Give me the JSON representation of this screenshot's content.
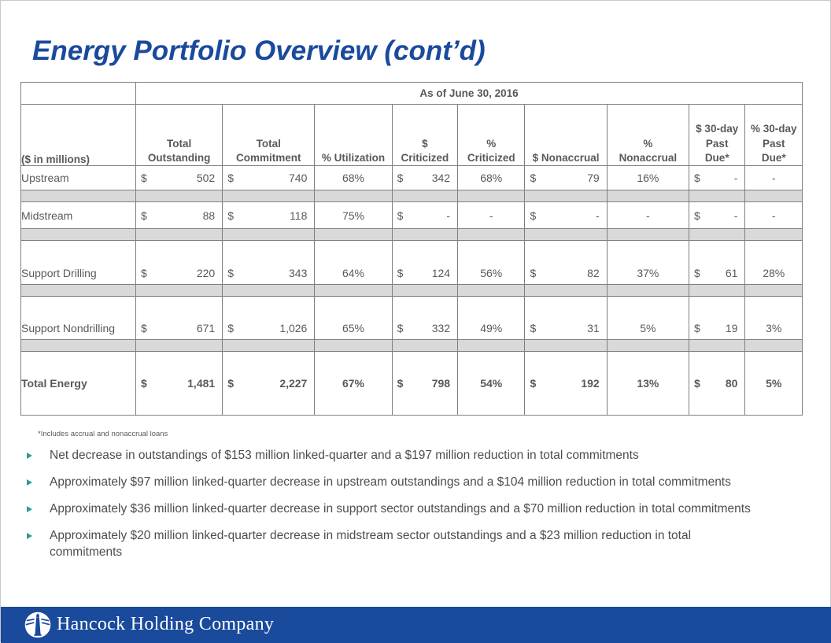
{
  "slide": {
    "title": "Energy Portfolio Overview (cont’d)"
  },
  "table": {
    "as_of_header": "As of June 30, 2016",
    "corner_label": "($ in millions)",
    "columns": [
      "Total\nOutstanding",
      "Total\nCommitment",
      "% Utilization",
      "$\nCriticized",
      "%\nCriticized",
      "$ Nonaccrual",
      "%\nNonaccrual",
      "$ 30-day\nPast\nDue*",
      "% 30-day\nPast\nDue*"
    ],
    "rows": [
      {
        "label": "Upstream",
        "bold": false,
        "valign": "middle",
        "cells": [
          [
            "$",
            "502"
          ],
          [
            "$",
            "740"
          ],
          "68%",
          [
            "$",
            "342"
          ],
          "68%",
          [
            "$",
            "79"
          ],
          "16%",
          [
            "$",
            "-"
          ],
          "-"
        ]
      },
      {
        "label": "Midstream",
        "bold": false,
        "valign": "middle",
        "cells": [
          [
            "$",
            "88"
          ],
          [
            "$",
            "118"
          ],
          "75%",
          [
            "$",
            "-"
          ],
          "-",
          [
            "$",
            "-"
          ],
          "-",
          [
            "$",
            "-"
          ],
          "-"
        ]
      },
      {
        "label": "Support Drilling",
        "bold": false,
        "valign": "bottom",
        "cells": [
          [
            "$",
            "220"
          ],
          [
            "$",
            "343"
          ],
          "64%",
          [
            "$",
            "124"
          ],
          "56%",
          [
            "$",
            "82"
          ],
          "37%",
          [
            "$",
            "61"
          ],
          "28%"
        ]
      },
      {
        "label": "Support Nondrilling",
        "bold": false,
        "valign": "bottom",
        "cells": [
          [
            "$",
            "671"
          ],
          [
            "$",
            "1,026"
          ],
          "65%",
          [
            "$",
            "332"
          ],
          "49%",
          [
            "$",
            "31"
          ],
          "5%",
          [
            "$",
            "19"
          ],
          "3%"
        ]
      },
      {
        "label": "Total Energy",
        "bold": true,
        "valign": "middle",
        "cells": [
          [
            "$",
            "1,481"
          ],
          [
            "$",
            "2,227"
          ],
          "67%",
          [
            "$",
            "798"
          ],
          "54%",
          [
            "$",
            "192"
          ],
          "13%",
          [
            "$",
            "80"
          ],
          "5%"
        ]
      }
    ],
    "footnote": "*Includes accrual and nonaccrual loans"
  },
  "bullets": [
    "Net decrease in outstandings of $153 million linked-quarter and a $197 million reduction in total commitments",
    "Approximately $97 million linked-quarter decrease in upstream outstandings and a $104 million reduction in total commitments",
    "Approximately $36 million linked-quarter decrease in support sector outstandings and a $70 million reduction in total commitments",
    "Approximately $20 million linked-quarter decrease in midstream sector outstandings and a $23 million reduction in total commitments"
  ],
  "footer": {
    "company": "Hancock Holding Company",
    "logo": "lighthouse-logo"
  },
  "colors": {
    "brand-blue": "#1a4a9c",
    "bullet-teal": "#2f9e8e",
    "band-gray": "#d9d9d9",
    "table-border": "#7f7f7f",
    "table-text": "#595959"
  }
}
